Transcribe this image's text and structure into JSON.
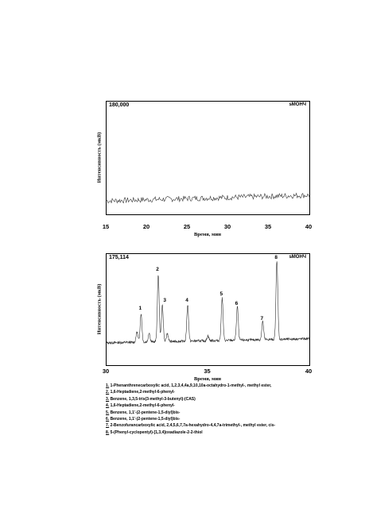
{
  "chart_data": [
    {
      "type": "line",
      "corner_value": "180,000",
      "corner_tag": "ѕМОНЧ",
      "ylabel": "Интенсивность (мкВ)",
      "xlabel": "Время, мин",
      "xlim": [
        15,
        40
      ],
      "x_ticks": [
        "15",
        "20",
        "25",
        "30",
        "35",
        "40"
      ],
      "baseline_start": 0.12,
      "baseline_end": 0.17,
      "noise": 0.025
    },
    {
      "type": "line",
      "corner_value": "175,114",
      "corner_tag": "ѕМОНЧ",
      "ylabel": "Интенсивность (мкВ)",
      "xlabel": "Время, мин",
      "xlim": [
        30,
        40
      ],
      "x_ticks": [
        "30",
        "35",
        "40"
      ],
      "baseline": 0.22,
      "peaks": [
        {
          "label": "1",
          "x": 31.7,
          "height": 0.5
        },
        {
          "label": "2",
          "x": 32.55,
          "height": 0.88
        },
        {
          "label": "3",
          "x": 32.75,
          "height": 0.58
        },
        {
          "label": "4",
          "x": 34.0,
          "height": 0.58
        },
        {
          "label": "5",
          "x": 35.7,
          "height": 0.64
        },
        {
          "label": "6",
          "x": 36.45,
          "height": 0.55
        },
        {
          "label": "7",
          "x": 37.7,
          "height": 0.4
        },
        {
          "label": "8",
          "x": 38.4,
          "height": 1.0
        }
      ],
      "minor_peaks": [
        {
          "x": 31.5,
          "height": 0.32
        },
        {
          "x": 32.1,
          "height": 0.31
        },
        {
          "x": 33.0,
          "height": 0.3
        },
        {
          "x": 35.0,
          "height": 0.27
        }
      ]
    }
  ],
  "legend": [
    {
      "num": "1.",
      "text": "1-Phenanthrenecarboxylic acid, 1,2,3,4,4a,9,10,10a-octahydro-1-methyl-, methyl ester,"
    },
    {
      "num": "2.",
      "text": "1,6-Heptadiene,2-methyl-6-phenyl-"
    },
    {
      "num": "3.",
      "text": "Benzene, 1,3,5-tris(3-methyl-3-butenyl)-(CAS)"
    },
    {
      "num": "4.",
      "text": "1,6-Heptadiene,2-methyl-6-phenyl-"
    },
    {
      "num": "5.",
      "text": "Benzene, 1,1'-(2-pentene-1,5-diyl)bis-"
    },
    {
      "num": "6.",
      "text": "Benzene, 1,1'-(2-pentene-1,5-diyl)bis-"
    },
    {
      "num": "7.",
      "text": "2-Benzofurancarboxylic acid, 2,4,5,6,7,7a-hexahydro-4,4,7a-trimethyl-, methyl ester, cis-"
    },
    {
      "num": "8.",
      "text": "5-(Phenyl-cyclopentyl)-[1,3,4]oxadiazole-2-2-thiol"
    }
  ]
}
